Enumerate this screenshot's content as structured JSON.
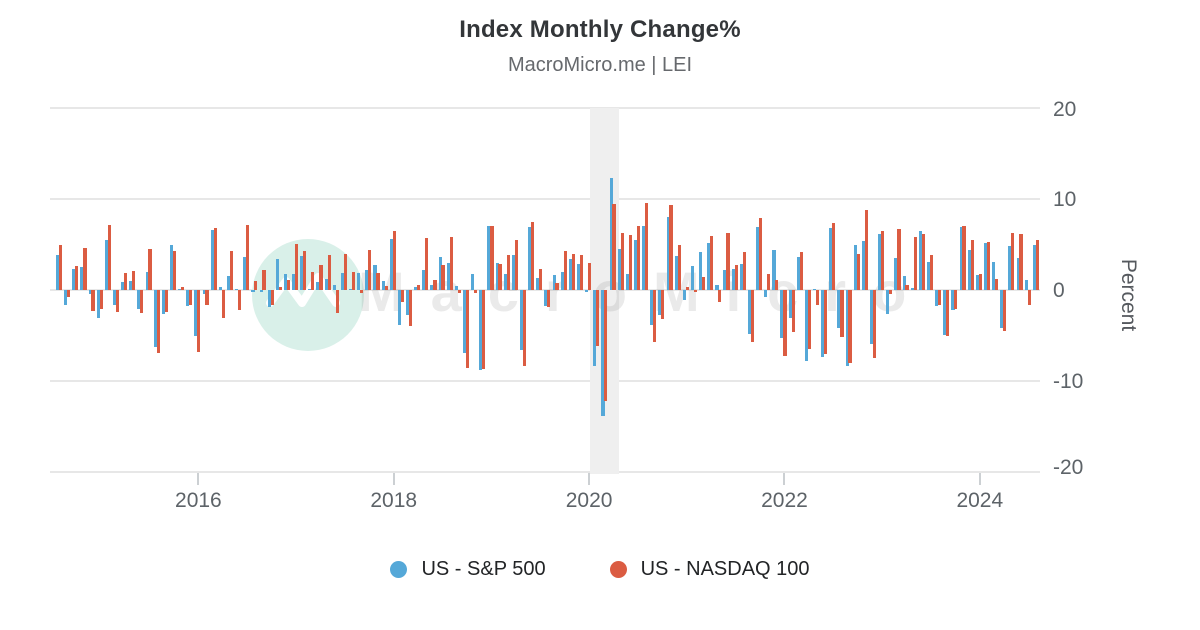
{
  "title": "Index Monthly Change%",
  "subtitle": "MacroMicro.me | LEI",
  "watermark": {
    "text": "MacroMicro"
  },
  "axes": {
    "y_label": "Percent",
    "y_ticks": [
      "20",
      "10",
      "0",
      "-10",
      "-20"
    ],
    "x_ticks": [
      "2016",
      "2018",
      "2020",
      "2022",
      "2024"
    ],
    "ylim": [
      -20,
      20
    ]
  },
  "legend": [
    {
      "label": "US - S&P 500",
      "color": "#55a8d8"
    },
    {
      "label": "US - NASDAQ 100",
      "color": "#db5c42"
    }
  ],
  "recession_band": {
    "start": "2020-02",
    "end": "2020-04"
  },
  "colors": {
    "sp500": "#55a8d8",
    "nasdaq100": "#db5c42",
    "gridline": "#e7e7e7",
    "band": "#efefef",
    "watermark_circle": "#d9f0e9"
  },
  "chart_data": {
    "type": "bar",
    "title": "Index Monthly Change%",
    "subtitle": "MacroMicro.me | LEI",
    "ylabel": "Percent",
    "xlabel": "",
    "ylim": [
      -20,
      20
    ],
    "grid": true,
    "legend_position": "bottom",
    "frequency": "monthly",
    "x_start": "2014-08",
    "x_end": "2024-08",
    "highlight_band": {
      "start": "2020-02",
      "end": "2020-04",
      "meaning": "recession shading"
    },
    "months": [
      "2014-08",
      "2014-09",
      "2014-10",
      "2014-11",
      "2014-12",
      "2015-01",
      "2015-02",
      "2015-03",
      "2015-04",
      "2015-05",
      "2015-06",
      "2015-07",
      "2015-08",
      "2015-09",
      "2015-10",
      "2015-11",
      "2015-12",
      "2016-01",
      "2016-02",
      "2016-03",
      "2016-04",
      "2016-05",
      "2016-06",
      "2016-07",
      "2016-08",
      "2016-09",
      "2016-10",
      "2016-11",
      "2016-12",
      "2017-01",
      "2017-02",
      "2017-03",
      "2017-04",
      "2017-05",
      "2017-06",
      "2017-07",
      "2017-08",
      "2017-09",
      "2017-10",
      "2017-11",
      "2017-12",
      "2018-01",
      "2018-02",
      "2018-03",
      "2018-04",
      "2018-05",
      "2018-06",
      "2018-07",
      "2018-08",
      "2018-09",
      "2018-10",
      "2018-11",
      "2018-12",
      "2019-01",
      "2019-02",
      "2019-03",
      "2019-04",
      "2019-05",
      "2019-06",
      "2019-07",
      "2019-08",
      "2019-09",
      "2019-10",
      "2019-11",
      "2019-12",
      "2020-01",
      "2020-02",
      "2020-03",
      "2020-04",
      "2020-05",
      "2020-06",
      "2020-07",
      "2020-08",
      "2020-09",
      "2020-10",
      "2020-11",
      "2020-12",
      "2021-01",
      "2021-02",
      "2021-03",
      "2021-04",
      "2021-05",
      "2021-06",
      "2021-07",
      "2021-08",
      "2021-09",
      "2021-10",
      "2021-11",
      "2021-12",
      "2022-01",
      "2022-02",
      "2022-03",
      "2022-04",
      "2022-05",
      "2022-06",
      "2022-07",
      "2022-08",
      "2022-09",
      "2022-10",
      "2022-11",
      "2022-12",
      "2023-01",
      "2023-02",
      "2023-03",
      "2023-04",
      "2023-05",
      "2023-06",
      "2023-07",
      "2023-08",
      "2023-09",
      "2023-10",
      "2023-11",
      "2023-12",
      "2024-01",
      "2024-02",
      "2024-03",
      "2024-04",
      "2024-05",
      "2024-06",
      "2024-07",
      "2024-08"
    ],
    "series": [
      {
        "name": "US - S&P 500",
        "color": "#55a8d8",
        "values": [
          3.8,
          -1.6,
          2.3,
          2.5,
          -0.4,
          -3.1,
          5.5,
          -1.7,
          0.9,
          1.0,
          -2.1,
          2.0,
          -6.3,
          -2.6,
          5.0,
          0.1,
          -1.8,
          -5.1,
          -0.4,
          6.6,
          0.3,
          1.5,
          0.1,
          3.6,
          -0.1,
          -0.1,
          -1.9,
          3.4,
          1.8,
          1.8,
          3.7,
          0.0,
          0.9,
          1.2,
          0.5,
          1.9,
          0.1,
          1.9,
          2.2,
          2.8,
          1.0,
          5.6,
          -3.9,
          -2.7,
          0.3,
          2.2,
          0.5,
          3.6,
          3.0,
          0.4,
          -6.9,
          1.8,
          -8.8,
          7.0,
          3.0,
          1.8,
          3.9,
          -6.6,
          6.9,
          1.3,
          -1.8,
          1.7,
          2.0,
          3.4,
          2.9,
          -0.2,
          -8.4,
          -13.8,
          12.3,
          4.5,
          1.8,
          5.5,
          7.0,
          -3.9,
          -2.8,
          8.0,
          3.7,
          -1.1,
          2.6,
          4.2,
          5.2,
          0.5,
          2.2,
          2.3,
          2.9,
          -4.8,
          6.9,
          -0.8,
          4.4,
          -5.3,
          -3.1,
          3.6,
          -7.8,
          0.0,
          -7.4,
          6.8,
          -4.2,
          -8.3,
          5.0,
          5.4,
          -5.9,
          6.2,
          -2.6,
          3.5,
          1.5,
          0.2,
          6.5,
          3.1,
          -1.8,
          -4.9,
          -2.2,
          6.9,
          4.4,
          1.6,
          5.2,
          3.1,
          -4.2,
          4.8,
          3.5,
          1.1,
          5.0
        ]
      },
      {
        "name": "US - NASDAQ 100",
        "color": "#db5c42",
        "values": [
          4.9,
          -0.8,
          2.6,
          4.6,
          -2.3,
          -2.1,
          7.1,
          -2.4,
          1.9,
          2.1,
          -2.5,
          4.5,
          -6.9,
          -2.4,
          4.3,
          0.3,
          -1.6,
          -6.8,
          -1.6,
          6.8,
          -3.1,
          4.3,
          -2.2,
          7.1,
          1.0,
          2.2,
          -1.6,
          0.3,
          1.1,
          5.1,
          4.3,
          2.0,
          2.7,
          3.9,
          -2.5,
          4.0,
          2.0,
          -0.3,
          4.4,
          1.9,
          0.4,
          6.5,
          -1.3,
          -4.0,
          0.5,
          5.7,
          1.1,
          2.8,
          5.8,
          -0.3,
          -8.6,
          -0.3,
          -8.7,
          7.0,
          2.9,
          3.9,
          5.5,
          -8.3,
          7.5,
          2.3,
          -1.9,
          0.8,
          4.3,
          4.0,
          3.9,
          3.0,
          -6.2,
          -12.2,
          9.5,
          6.3,
          6.0,
          7.0,
          9.6,
          -5.7,
          -3.2,
          9.3,
          4.9,
          0.3,
          -0.1,
          1.4,
          5.9,
          -1.3,
          6.3,
          2.8,
          4.2,
          -5.7,
          7.9,
          1.8,
          1.1,
          -7.3,
          -4.6,
          4.2,
          -6.5,
          -1.7,
          -7.0,
          7.4,
          -5.2,
          -8.0,
          4.0,
          8.8,
          -7.5,
          6.5,
          -0.4,
          6.7,
          0.5,
          5.8,
          6.2,
          3.8,
          -1.6,
          -5.1,
          -2.1,
          7.0,
          5.5,
          1.8,
          5.3,
          1.2,
          -4.5,
          6.3,
          6.2,
          -1.6,
          5.5
        ]
      }
    ]
  }
}
